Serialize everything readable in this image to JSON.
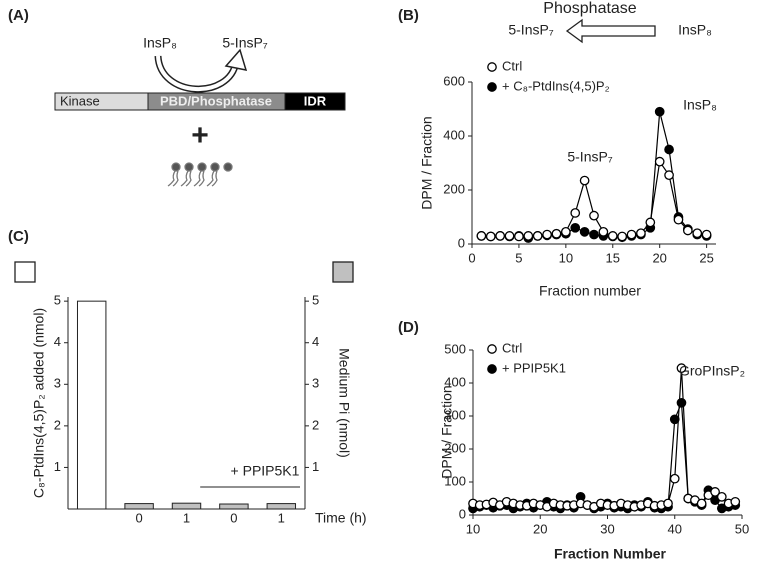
{
  "panel_labels": [
    "(A)",
    "(B)",
    "(C)",
    "(D)"
  ],
  "diagram": {
    "substrate": "InsP₈",
    "product": "5-InsP₇",
    "domains": [
      "Kinase",
      "PBD/Phosphatase",
      "IDR"
    ],
    "plus": "+"
  },
  "chart_data": [
    {
      "type": "line",
      "header": {
        "label": "Phosphatase",
        "left": "5-InsP₇",
        "right": "InsP₈"
      },
      "xlabel": "Fraction number",
      "ylabel": "DPM / Fraction",
      "x": [
        1,
        2,
        3,
        4,
        5,
        6,
        7,
        8,
        9,
        10,
        11,
        12,
        13,
        14,
        15,
        16,
        17,
        18,
        19,
        20,
        21,
        22,
        23,
        24,
        25
      ],
      "xlim": [
        0,
        26
      ],
      "xticks": [
        0,
        5,
        10,
        15,
        20,
        25
      ],
      "ylim": [
        0,
        600
      ],
      "yticks": [
        0,
        200,
        400,
        600
      ],
      "annotations": [
        "5-InsP₇",
        "InsP₈"
      ],
      "series": [
        {
          "name": "Ctrl",
          "color": "#000000",
          "marker_fill": "#ffffff",
          "values": [
            30,
            28,
            30,
            30,
            28,
            30,
            30,
            35,
            38,
            45,
            115,
            235,
            105,
            45,
            30,
            28,
            35,
            40,
            80,
            305,
            255,
            90,
            50,
            40,
            35
          ]
        },
        {
          "name": "+ C₈-PtdIns(4,5)P₂",
          "color": "#000000",
          "marker_fill": "#000000",
          "values": [
            30,
            28,
            30,
            28,
            30,
            22,
            30,
            32,
            35,
            38,
            60,
            45,
            35,
            30,
            28,
            25,
            30,
            35,
            60,
            490,
            350,
            100,
            55,
            35,
            30
          ]
        }
      ]
    },
    {
      "type": "bar",
      "xlabel": "Time (h)",
      "ylabel": "C₈-PtdIns(4,5)P₂ added (nmol)",
      "y2label": "Medium Pi (nmol)",
      "categories": [
        null,
        "0",
        "1",
        "0",
        "1"
      ],
      "ylim": [
        0,
        5.1
      ],
      "yticks": [
        1,
        2,
        3,
        4,
        5
      ],
      "y2lim": [
        0,
        5.1
      ],
      "y2ticks": [
        1,
        2,
        3,
        4,
        5
      ],
      "annotations": [
        "+ PPIP5K1"
      ],
      "series": [
        {
          "color": "#ffffff",
          "values": [
            5,
            null,
            null,
            null,
            null
          ]
        },
        {
          "color": "#c0c0c0",
          "axis": "y2",
          "values": [
            null,
            0.13,
            0.14,
            0.12,
            0.13
          ]
        }
      ]
    },
    {
      "type": "line",
      "xlabel": "Fraction Number",
      "ylabel": "DPM / Fraction",
      "x": [
        10,
        11,
        12,
        13,
        14,
        15,
        16,
        17,
        18,
        19,
        20,
        21,
        22,
        23,
        24,
        25,
        26,
        27,
        28,
        29,
        30,
        31,
        32,
        33,
        34,
        35,
        36,
        37,
        38,
        39,
        40,
        41,
        42,
        43,
        44,
        45,
        46,
        47,
        48,
        49
      ],
      "xlim": [
        10,
        50
      ],
      "xticks": [
        10,
        20,
        30,
        40,
        50
      ],
      "ylim": [
        0,
        500
      ],
      "yticks": [
        0,
        100,
        200,
        300,
        400,
        500
      ],
      "annotations": [
        "GroPInsP₂"
      ],
      "series": [
        {
          "name": "Ctrl",
          "color": "#000000",
          "marker_fill": "#ffffff",
          "values": [
            35,
            30,
            32,
            38,
            30,
            40,
            35,
            30,
            28,
            35,
            30,
            25,
            35,
            30,
            28,
            30,
            35,
            30,
            25,
            35,
            30,
            28,
            35,
            30,
            25,
            30,
            35,
            28,
            30,
            35,
            110,
            445,
            50,
            45,
            35,
            60,
            70,
            55,
            35,
            40
          ]
        },
        {
          "name": "+ PPIP5K1",
          "color": "#000000",
          "marker_fill": "#000000",
          "values": [
            20,
            25,
            30,
            22,
            28,
            30,
            20,
            25,
            35,
            22,
            30,
            40,
            25,
            20,
            30,
            22,
            55,
            30,
            20,
            25,
            35,
            22,
            25,
            20,
            30,
            25,
            40,
            22,
            20,
            25,
            290,
            340,
            50,
            40,
            30,
            75,
            45,
            20,
            25,
            30
          ]
        }
      ]
    }
  ]
}
